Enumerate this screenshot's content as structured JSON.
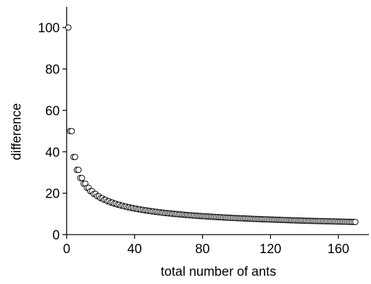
{
  "chart_data": {
    "type": "scatter",
    "xlabel": "total number of ants",
    "ylabel": "difference",
    "x": [
      1,
      2,
      3,
      4,
      5,
      6,
      7,
      8,
      9,
      10,
      11,
      12,
      13,
      14,
      15,
      16,
      17,
      18,
      19,
      20,
      21,
      22,
      23,
      24,
      25,
      26,
      27,
      28,
      29,
      30,
      31,
      32,
      33,
      34,
      35,
      36,
      37,
      38,
      39,
      40,
      41,
      42,
      43,
      44,
      45,
      46,
      47,
      48,
      49,
      50,
      51,
      52,
      53,
      54,
      55,
      56,
      57,
      58,
      59,
      60,
      61,
      62,
      63,
      64,
      65,
      66,
      67,
      68,
      69,
      70,
      71,
      72,
      73,
      74,
      75,
      76,
      77,
      78,
      79,
      80,
      81,
      82,
      83,
      84,
      85,
      86,
      87,
      88,
      89,
      90,
      91,
      92,
      93,
      94,
      95,
      96,
      97,
      98,
      99,
      100,
      101,
      102,
      103,
      104,
      105,
      106,
      107,
      108,
      109,
      110,
      111,
      112,
      113,
      114,
      115,
      116,
      117,
      118,
      119,
      120,
      121,
      122,
      123,
      124,
      125,
      126,
      127,
      128,
      129,
      130,
      131,
      132,
      133,
      134,
      135,
      136,
      137,
      138,
      139,
      140,
      141,
      142,
      143,
      144,
      145,
      146,
      147,
      148,
      149,
      150,
      151,
      152,
      153,
      154,
      155,
      156,
      157,
      158,
      159,
      160,
      161,
      162,
      163,
      164,
      165,
      166,
      167,
      168,
      169,
      170
    ],
    "values": [
      100,
      50,
      50,
      37.5,
      37.5,
      31.25,
      31.25,
      27.34,
      27.34,
      24.61,
      24.61,
      22.56,
      22.56,
      20.95,
      20.95,
      19.64,
      19.64,
      18.55,
      18.55,
      17.62,
      17.62,
      16.82,
      16.82,
      16.12,
      16.12,
      15.5,
      15.5,
      14.94,
      14.94,
      14.45,
      14.45,
      14,
      14,
      13.59,
      13.59,
      13.21,
      13.21,
      12.86,
      12.86,
      12.54,
      12.54,
      12.24,
      12.24,
      11.96,
      11.96,
      11.7,
      11.7,
      11.46,
      11.46,
      11.23,
      11.23,
      11.01,
      11.01,
      10.81,
      10.81,
      10.61,
      10.61,
      10.43,
      10.43,
      10.26,
      10.26,
      10.09,
      10.09,
      9.93,
      9.93,
      9.78,
      9.78,
      9.64,
      9.64,
      9.5,
      9.5,
      9.37,
      9.37,
      9.24,
      9.24,
      9.12,
      9.12,
      9,
      9,
      8.89,
      8.89,
      8.78,
      8.78,
      8.68,
      8.68,
      8.58,
      8.58,
      8.48,
      8.48,
      8.39,
      8.39,
      8.3,
      8.3,
      8.21,
      8.21,
      8.12,
      8.12,
      8.04,
      8.04,
      7.96,
      7.96,
      7.88,
      7.88,
      7.81,
      7.81,
      7.73,
      7.73,
      7.66,
      7.66,
      7.59,
      7.59,
      7.52,
      7.52,
      7.46,
      7.46,
      7.39,
      7.39,
      7.33,
      7.33,
      7.27,
      7.27,
      7.21,
      7.21,
      7.15,
      7.15,
      7.09,
      7.09,
      7.04,
      7.04,
      6.98,
      6.98,
      6.93,
      6.93,
      6.88,
      6.88,
      6.83,
      6.83,
      6.78,
      6.78,
      6.73,
      6.73,
      6.68,
      6.68,
      6.64,
      6.64,
      6.59,
      6.59,
      6.55,
      6.55,
      6.5,
      6.5,
      6.46,
      6.46,
      6.42,
      6.42,
      6.38,
      6.38,
      6.34,
      6.34,
      6.3,
      6.3,
      6.26,
      6.26,
      6.22,
      6.22,
      6.18,
      6.18,
      6.15,
      6.15,
      6.11
    ],
    "color": "#000000",
    "xlim": [
      0,
      178
    ],
    "xticks": [
      0,
      40,
      80,
      120,
      160
    ],
    "ylim": [
      0,
      110
    ],
    "yticks": [
      0,
      20,
      40,
      60,
      80,
      100
    ]
  }
}
